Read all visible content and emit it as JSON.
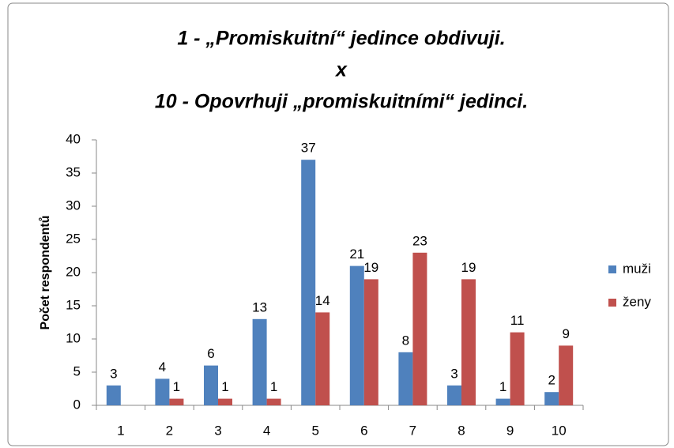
{
  "chart_data": {
    "type": "bar",
    "title": [
      "1 - „Promiskuitní“ jedince obdivuji.",
      "x",
      "10 - Opovrhuji „promiskuitními“ jedinci."
    ],
    "y_label": "Počet respondentů",
    "categories": [
      "1",
      "2",
      "3",
      "4",
      "5",
      "6",
      "7",
      "8",
      "9",
      "10"
    ],
    "series": [
      {
        "name": "muži",
        "color": "#4f81bd",
        "values": [
          3,
          4,
          6,
          13,
          37,
          21,
          8,
          3,
          1,
          2
        ]
      },
      {
        "name": "ženy",
        "color": "#c0504d",
        "values": [
          null,
          1,
          1,
          1,
          14,
          19,
          23,
          19,
          11,
          9
        ]
      }
    ],
    "ylim": [
      0,
      40
    ],
    "yticks": [
      0,
      5,
      10,
      15,
      20,
      25,
      30,
      35,
      40
    ],
    "grid": false,
    "legend": "right",
    "data_labels": true
  }
}
